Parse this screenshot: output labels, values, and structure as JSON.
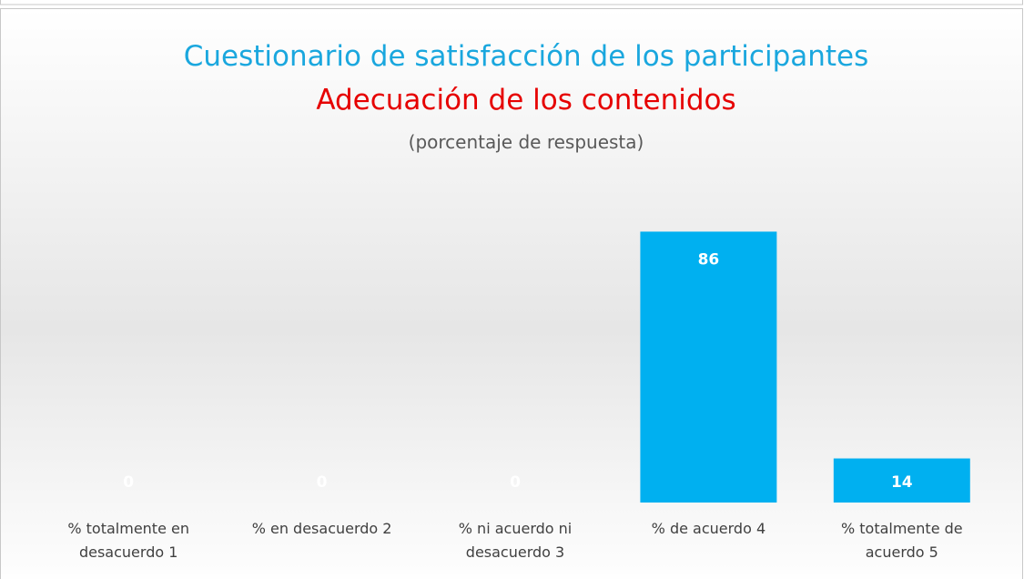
{
  "chart_data": {
    "type": "bar",
    "title": "Cuestionario de satisfacción de los participantes",
    "subtitle": "Adecuación de los contenidos",
    "note": "(porcentaje de respuesta)",
    "categories": [
      "% totalmente en desacuerdo 1",
      "% en desacuerdo 2",
      "% ni acuerdo ni desacuerdo 3",
      "% de acuerdo 4",
      "% totalmente de acuerdo 5"
    ],
    "values": [
      0,
      0,
      0,
      86,
      14
    ],
    "color": "#00b0f0",
    "ylim": [
      0,
      100
    ]
  }
}
